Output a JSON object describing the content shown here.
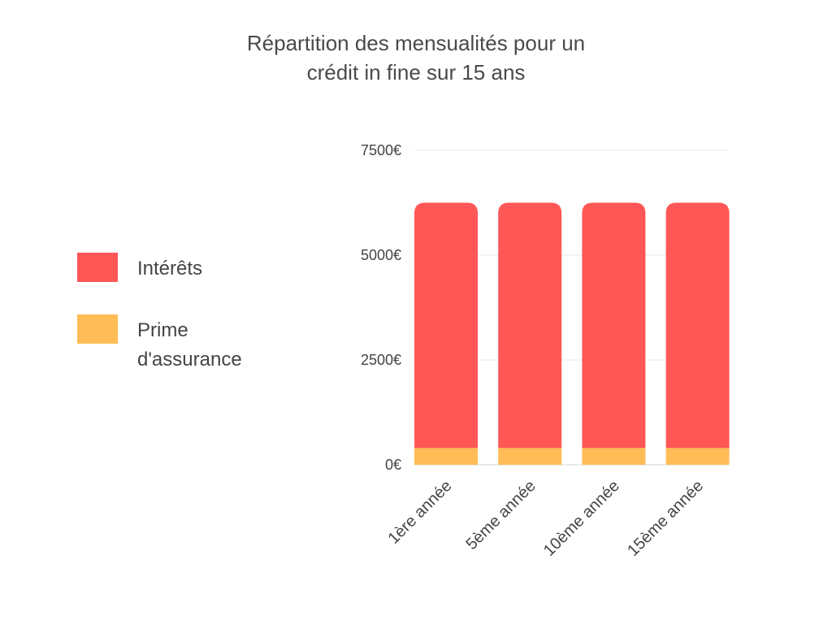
{
  "chart_data": {
    "type": "bar",
    "stacked": true,
    "title": "Répartition des mensualités pour un\ncrédit in fine sur 15 ans",
    "categories": [
      "1ère année",
      "5ème année",
      "10ème année",
      "15ème année"
    ],
    "series": [
      {
        "name": "Prime\nd'assurance",
        "values": [
          400,
          400,
          400,
          400
        ],
        "color": "#ffbc57"
      },
      {
        "name": "Intérêts",
        "values": [
          5850,
          5850,
          5850,
          5850
        ],
        "color": "#ff5656"
      }
    ],
    "legend_order": [
      "Intérêts",
      "Prime\nd'assurance"
    ],
    "y_ticks": [
      "0€",
      "2500€",
      "5000€",
      "7500€"
    ],
    "ylim": [
      0,
      7500
    ],
    "grid": true,
    "xlabel": "",
    "ylabel": "",
    "legend_position": "left"
  }
}
